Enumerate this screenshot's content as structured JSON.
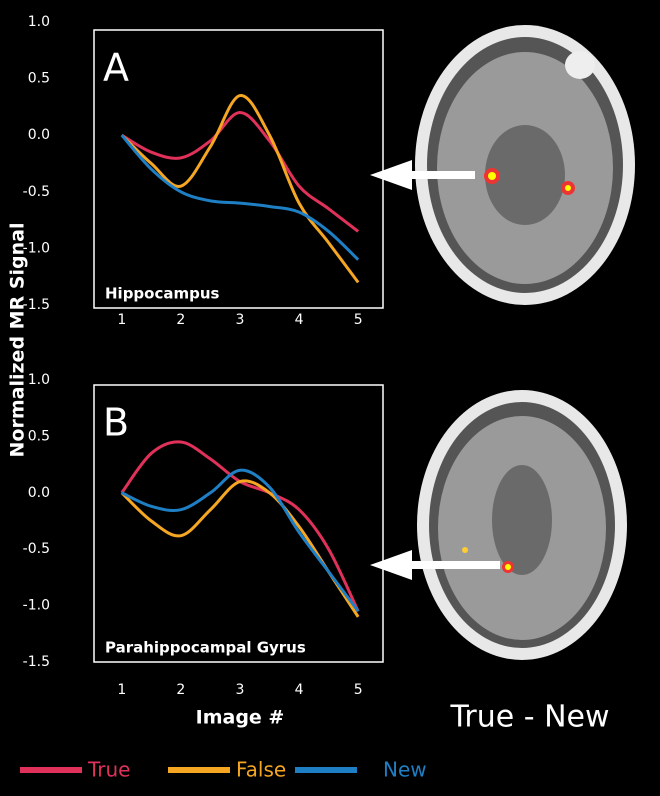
{
  "caption": "True - New",
  "chart_data": [
    {
      "type": "line",
      "panel": "A",
      "label": "Hippocampus",
      "ylabel": "Normalized MR Signal",
      "x": [
        1,
        1.5,
        2,
        2.5,
        3,
        3.5,
        4,
        4.5,
        5
      ],
      "xlim": [
        0.53,
        5.42
      ],
      "xticks": [
        1,
        2,
        3,
        4,
        5
      ],
      "ylim": [
        -1.5,
        1.0
      ],
      "yticks": [
        {
          "value": 1.0,
          "label": "1.0"
        },
        0.5,
        {
          "value": 0.0,
          "label": "0.0"
        },
        -0.5,
        {
          "value": -1.0,
          "label": "-1.0"
        },
        -1.5
      ],
      "series": [
        {
          "name": "True",
          "color": "#e0315a",
          "values": [
            0,
            -0.15,
            -0.2,
            -0.05,
            0.2,
            -0.05,
            -0.45,
            -0.65,
            -0.85
          ]
        },
        {
          "name": "False",
          "color": "#f5a623",
          "values": [
            0,
            -0.25,
            -0.45,
            -0.1,
            0.35,
            0.0,
            -0.6,
            -0.95,
            -1.3
          ]
        },
        {
          "name": "New",
          "color": "#1f7fc4",
          "values": [
            0,
            -0.3,
            -0.5,
            -0.58,
            -0.6,
            -0.63,
            -0.68,
            -0.85,
            -1.1
          ]
        }
      ]
    },
    {
      "type": "line",
      "panel": "B",
      "label": "Parahippocampal Gyrus",
      "xlabel": "Image #",
      "x": [
        1,
        1.5,
        2,
        2.5,
        3,
        3.5,
        4,
        4.5,
        5
      ],
      "xlim": [
        0.53,
        5.42
      ],
      "xticks": [
        1,
        2,
        3,
        4,
        5
      ],
      "ylim": [
        -1.5,
        1.0
      ],
      "yticks": [
        {
          "value": 1.0,
          "label": "1.0"
        },
        0.5,
        {
          "value": 0.0,
          "label": "0.0"
        },
        -0.5,
        {
          "value": -1.0,
          "label": "-1.0"
        },
        -1.5
      ],
      "series": [
        {
          "name": "True",
          "color": "#e0315a",
          "values": [
            0,
            0.35,
            0.45,
            0.3,
            0.1,
            0.0,
            -0.15,
            -0.5,
            -1.05
          ]
        },
        {
          "name": "False",
          "color": "#f5a623",
          "values": [
            0,
            -0.25,
            -0.38,
            -0.15,
            0.1,
            0.0,
            -0.3,
            -0.7,
            -1.1
          ]
        },
        {
          "name": "New",
          "color": "#1f7fc4",
          "values": [
            0,
            -0.12,
            -0.15,
            0.0,
            0.2,
            0.05,
            -0.35,
            -0.7,
            -1.05
          ]
        }
      ]
    }
  ]
}
